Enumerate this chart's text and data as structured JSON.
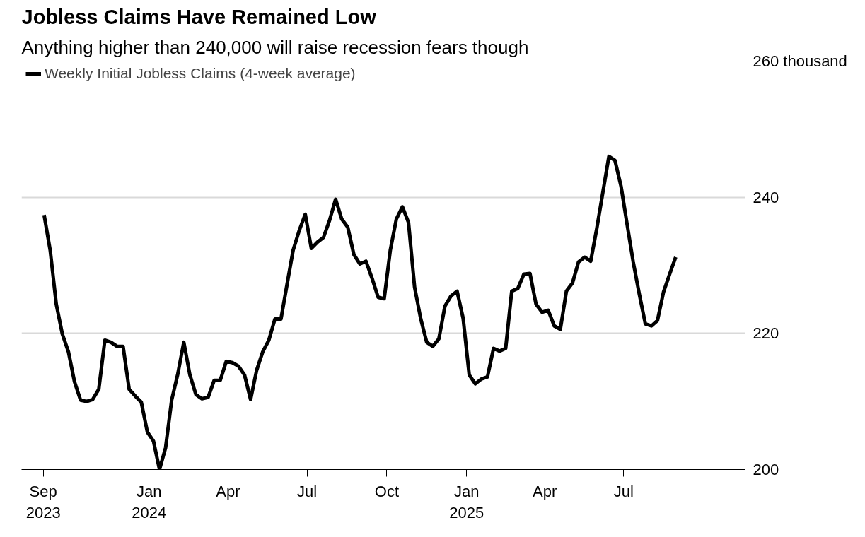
{
  "chart_data": {
    "type": "line",
    "title": "Jobless Claims Have Remained Low",
    "subtitle": "Anything higher than 240,000 will raise recession fears though",
    "x": [
      "2023-09-02",
      "2023-09-09",
      "2023-09-16",
      "2023-09-23",
      "2023-09-30",
      "2023-10-07",
      "2023-10-14",
      "2023-10-21",
      "2023-10-28",
      "2023-11-04",
      "2023-11-11",
      "2023-11-18",
      "2023-11-25",
      "2023-12-02",
      "2023-12-09",
      "2023-12-16",
      "2023-12-23",
      "2023-12-30",
      "2024-01-06",
      "2024-01-13",
      "2024-01-20",
      "2024-01-27",
      "2024-02-03",
      "2024-02-10",
      "2024-02-17",
      "2024-02-24",
      "2024-03-02",
      "2024-03-09",
      "2024-03-16",
      "2024-03-23",
      "2024-03-30",
      "2024-04-06",
      "2024-04-13",
      "2024-04-20",
      "2024-04-27",
      "2024-05-04",
      "2024-05-11",
      "2024-05-18",
      "2024-05-25",
      "2024-06-01",
      "2024-06-08",
      "2024-06-15",
      "2024-06-22",
      "2024-06-29",
      "2024-07-06",
      "2024-07-13",
      "2024-07-20",
      "2024-07-27",
      "2024-08-03",
      "2024-08-10",
      "2024-08-17",
      "2024-08-24",
      "2024-08-31",
      "2024-09-07",
      "2024-09-14",
      "2024-09-21",
      "2024-09-28",
      "2024-10-05",
      "2024-10-12",
      "2024-10-19",
      "2024-10-26",
      "2024-11-02",
      "2024-11-09",
      "2024-11-16",
      "2024-11-23",
      "2024-11-30",
      "2024-12-07",
      "2024-12-14",
      "2024-12-21",
      "2024-12-28",
      "2025-01-04",
      "2025-01-11",
      "2025-01-18",
      "2025-01-25",
      "2025-02-01",
      "2025-02-08",
      "2025-02-15",
      "2025-02-22",
      "2025-03-01",
      "2025-03-08",
      "2025-03-15",
      "2025-03-22",
      "2025-03-29",
      "2025-04-05",
      "2025-04-12",
      "2025-04-19",
      "2025-04-26",
      "2025-05-03",
      "2025-05-10",
      "2025-05-17",
      "2025-05-24",
      "2025-05-31",
      "2025-06-07",
      "2025-06-14",
      "2025-06-21",
      "2025-06-28",
      "2025-07-05",
      "2025-07-12",
      "2025-07-19",
      "2025-07-26",
      "2025-08-02",
      "2025-08-09",
      "2025-08-16",
      "2025-08-23",
      "2025-08-30"
    ],
    "series": [
      {
        "name": "Weekly Initial Jobless Claims (4-week average)",
        "color": "#000000",
        "values": [
          237.4,
          232.2,
          224.3,
          219.9,
          217.3,
          212.9,
          210.2,
          210.0,
          210.3,
          211.8,
          219.0,
          218.7,
          218.1,
          218.1,
          211.8,
          210.8,
          209.9,
          205.5,
          204.2,
          200.0,
          203.2,
          210.2,
          214.0,
          218.7,
          213.9,
          211.0,
          210.4,
          210.6,
          213.1,
          213.1,
          215.9,
          215.7,
          215.2,
          213.9,
          210.3,
          214.6,
          217.3,
          219.0,
          222.1,
          222.1,
          227.2,
          232.2,
          235.1,
          237.5,
          232.5,
          233.4,
          234.1,
          236.6,
          239.7,
          236.8,
          235.6,
          231.6,
          230.2,
          230.6,
          228.1,
          225.3,
          225.1,
          232.2,
          236.8,
          238.6,
          236.3,
          226.8,
          222.2,
          218.7,
          218.1,
          219.2,
          224.0,
          225.5,
          226.2,
          222.2,
          213.9,
          212.6,
          213.3,
          213.6,
          217.8,
          217.4,
          217.8,
          226.2,
          226.6,
          228.7,
          228.8,
          224.3,
          223.1,
          223.4,
          221.1,
          220.6,
          226.2,
          227.4,
          230.5,
          231.2,
          230.6,
          235.4,
          240.7,
          246.0,
          245.4,
          241.6,
          236.0,
          230.5,
          225.8,
          221.4,
          221.1,
          221.9,
          226.1,
          228.7,
          231.2
        ]
      }
    ],
    "xlim": [
      "2023-08-07",
      "2025-11-18"
    ],
    "xticks": [
      {
        "value": "2023-09-01",
        "label": "Sep\n2023"
      },
      {
        "value": "2024-01-01",
        "label": "Jan\n2024"
      },
      {
        "value": "2024-04-01",
        "label": "Apr"
      },
      {
        "value": "2024-07-01",
        "label": "Jul"
      },
      {
        "value": "2024-10-01",
        "label": "Oct"
      },
      {
        "value": "2025-01-01",
        "label": "Jan\n2025"
      },
      {
        "value": "2025-04-01",
        "label": "Apr"
      },
      {
        "value": "2025-07-01",
        "label": "Jul"
      }
    ],
    "ylim": [
      200,
      260
    ],
    "yticks": [
      200,
      220,
      240,
      {
        "value": 260,
        "label": "260 thousand"
      }
    ],
    "grid": "y",
    "legend": "top left",
    "marker": "none",
    "line_style": "solid"
  }
}
